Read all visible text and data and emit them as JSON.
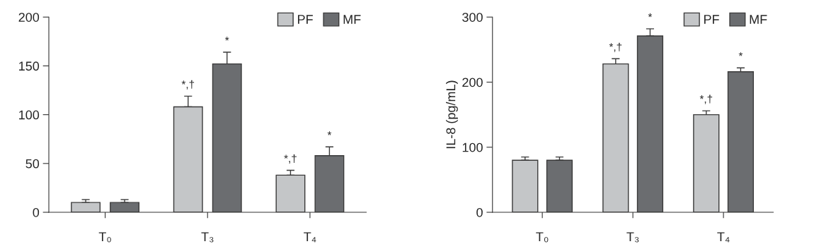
{
  "chart_data": [
    {
      "type": "bar",
      "categories": [
        "T₀",
        "T₃",
        "T₄"
      ],
      "series": [
        {
          "name": "PF",
          "color": "#c4c6c8",
          "values": [
            10,
            108,
            38
          ],
          "errors": [
            3,
            11,
            5
          ]
        },
        {
          "name": "MF",
          "color": "#6b6d70",
          "values": [
            10,
            152,
            58
          ],
          "errors": [
            3,
            12,
            9
          ]
        }
      ],
      "ylim": [
        0,
        200
      ],
      "yticks": [
        0,
        50,
        100,
        150,
        200
      ],
      "grid": false,
      "legend": "top right",
      "annotations": [
        "*,†",
        "*",
        "*,†",
        "*"
      ]
    },
    {
      "type": "bar",
      "categories": [
        "T₀",
        "T₃",
        "T₄"
      ],
      "ylabel": "IL-8 (pg/mL)",
      "series": [
        {
          "name": "PF",
          "color": "#c4c6c8",
          "values": [
            80,
            228,
            150
          ],
          "errors": [
            5,
            8,
            6
          ]
        },
        {
          "name": "MF",
          "color": "#6b6d70",
          "values": [
            80,
            271,
            216
          ],
          "errors": [
            5,
            11,
            6
          ]
        }
      ],
      "ylim": [
        0,
        300
      ],
      "yticks": [
        0,
        100,
        200,
        300
      ],
      "grid": false,
      "legend": "top right",
      "annotations": [
        "*,†",
        "*",
        "*,†",
        "*"
      ]
    }
  ]
}
